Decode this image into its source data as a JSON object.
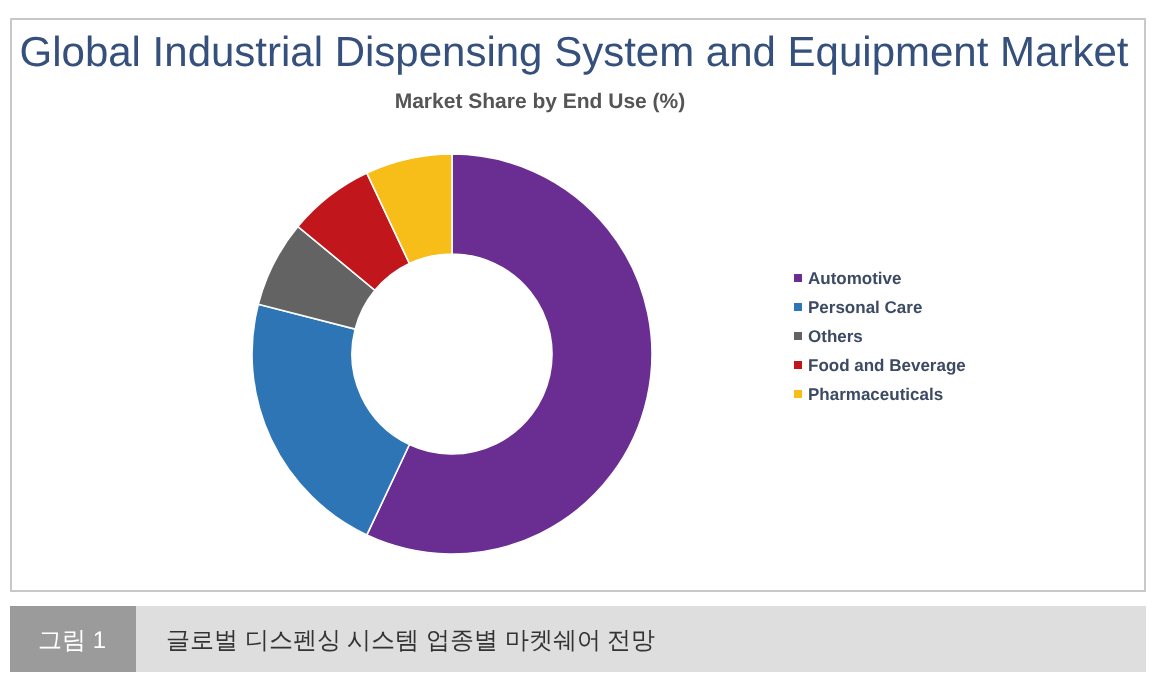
{
  "chart_data": {
    "type": "donut",
    "title": "Global Industrial Dispensing System and Equipment Market",
    "subtitle": "Market Share by End Use (%)",
    "categories": [
      "Automotive",
      "Personal Care",
      "Others",
      "Food and Beverage",
      "Pharmaceuticals"
    ],
    "values": [
      57,
      22,
      7,
      7,
      7
    ],
    "colors": [
      "#6a2d91",
      "#2e75b6",
      "#636363",
      "#c0161c",
      "#f7be1a"
    ],
    "legend": "right",
    "annotations": [
      "그림 1",
      "글로벌 디스펜싱 시스템 업종별 마켓쉐어 전망"
    ]
  }
}
